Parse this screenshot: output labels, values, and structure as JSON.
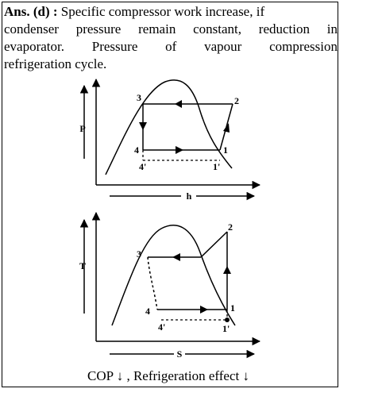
{
  "answer": {
    "label": "Ans. (d) :",
    "line1": "Specific compressor work increase, if",
    "line2": "condenser pressure remain constant, reduction in",
    "line3": "evaporator. Pressure of vapour compression",
    "line4": "refrigeration cycle."
  },
  "diagram_ph": {
    "y_axis_label": "P",
    "x_axis_label": "h",
    "points": {
      "p1": "1",
      "p1p": "1'",
      "p2": "2",
      "p3": "3",
      "p4": "4",
      "p4p": "4'"
    }
  },
  "diagram_ts": {
    "y_axis_label": "T",
    "x_axis_label": "S",
    "points": {
      "p1": "1",
      "p1p": "1'",
      "p2": "2",
      "p3": "3",
      "p4": "4",
      "p4p": "4'"
    }
  },
  "caption": "COP ↓ , Refrigeration effect ↓"
}
